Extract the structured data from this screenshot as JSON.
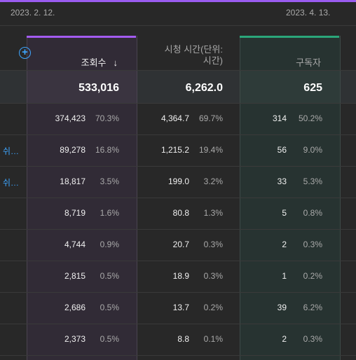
{
  "dates": {
    "start": "2023. 2. 12.",
    "end": "2023. 4. 13."
  },
  "columns": {
    "views": "조회수",
    "watch_time": [
      "시청 시간(단위:",
      "시간)"
    ],
    "subscribers": "구독자"
  },
  "totals": {
    "views": "533,016",
    "watch_time": "6,262.0",
    "subscribers": "625"
  },
  "rows": [
    {
      "link": "",
      "views": "374,423",
      "views_pct": "70.3%",
      "watch": "4,364.7",
      "watch_pct": "69.7%",
      "subs": "314",
      "subs_pct": "50.2%"
    },
    {
      "link": "쉬…",
      "views": "89,278",
      "views_pct": "16.8%",
      "watch": "1,215.2",
      "watch_pct": "19.4%",
      "subs": "56",
      "subs_pct": "9.0%"
    },
    {
      "link": "쉬…",
      "views": "18,817",
      "views_pct": "3.5%",
      "watch": "199.0",
      "watch_pct": "3.2%",
      "subs": "33",
      "subs_pct": "5.3%"
    },
    {
      "link": "",
      "views": "8,719",
      "views_pct": "1.6%",
      "watch": "80.8",
      "watch_pct": "1.3%",
      "subs": "5",
      "subs_pct": "0.8%"
    },
    {
      "link": "",
      "views": "4,744",
      "views_pct": "0.9%",
      "watch": "20.7",
      "watch_pct": "0.3%",
      "subs": "2",
      "subs_pct": "0.3%"
    },
    {
      "link": "",
      "views": "2,815",
      "views_pct": "0.5%",
      "watch": "18.9",
      "watch_pct": "0.3%",
      "subs": "1",
      "subs_pct": "0.2%"
    },
    {
      "link": "",
      "views": "2,686",
      "views_pct": "0.5%",
      "watch": "13.7",
      "watch_pct": "0.2%",
      "subs": "39",
      "subs_pct": "6.2%"
    },
    {
      "link": "",
      "views": "2,373",
      "views_pct": "0.5%",
      "watch": "8.8",
      "watch_pct": "0.1%",
      "subs": "2",
      "subs_pct": "0.3%"
    }
  ]
}
